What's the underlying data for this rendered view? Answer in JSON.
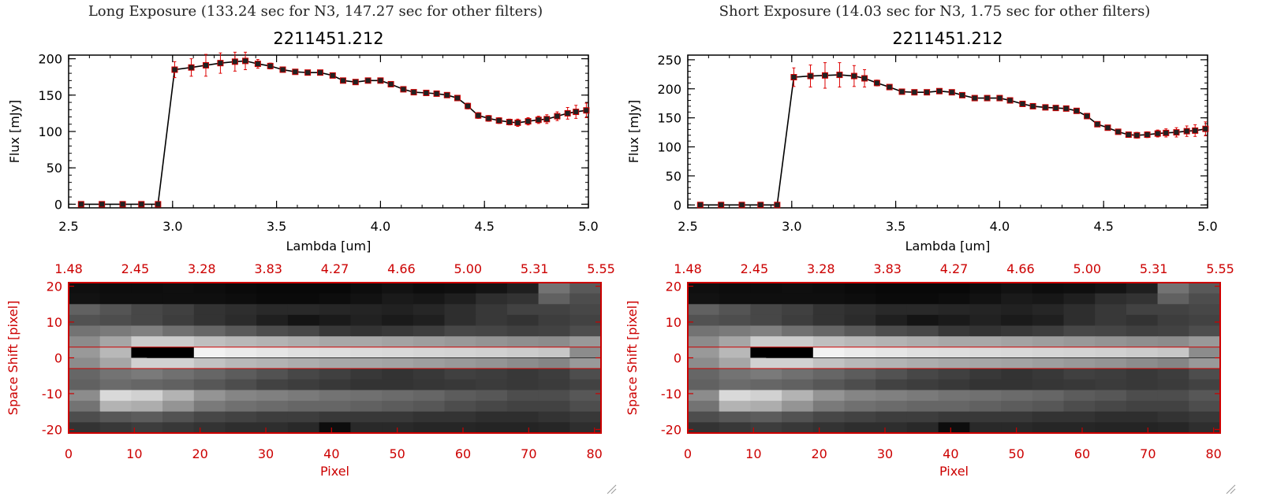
{
  "panels": [
    {
      "exposure_title": "Long Exposure (133.24 sec for N3, 147.27 sec for other filters)",
      "spectrum": {
        "title": "2211451.212",
        "xlabel": "Lambda [um]",
        "ylabel": "Flux [mJy]",
        "xticks": [
          "2.5",
          "3.0",
          "3.5",
          "4.0",
          "4.5",
          "5.0"
        ],
        "yticks": [
          "0",
          "50",
          "100",
          "150",
          "200"
        ]
      },
      "image": {
        "ylabel": "Space Shift [pixel]",
        "xlabel": "Pixel",
        "top_ticks": [
          "1.48",
          "2.45",
          "3.28",
          "3.83",
          "4.27",
          "4.66",
          "5.00",
          "5.31",
          "5.55"
        ],
        "bottom_ticks": [
          "0",
          "10",
          "20",
          "30",
          "40",
          "50",
          "60",
          "70",
          "80"
        ],
        "yticks": [
          "20",
          "10",
          "0",
          "-10",
          "-20"
        ]
      }
    },
    {
      "exposure_title": "Short Exposure (14.03 sec for N3, 1.75 sec for other filters)",
      "spectrum": {
        "title": "2211451.212",
        "xlabel": "Lambda [um]",
        "ylabel": "Flux [mJy]",
        "xticks": [
          "2.5",
          "3.0",
          "3.5",
          "4.0",
          "4.5",
          "5.0"
        ],
        "yticks": [
          "0",
          "50",
          "100",
          "150",
          "200",
          "250"
        ]
      },
      "image": {
        "ylabel": "Space Shift [pixel]",
        "xlabel": "Pixel",
        "top_ticks": [
          "1.48",
          "2.45",
          "3.28",
          "3.83",
          "4.27",
          "4.66",
          "5.00",
          "5.31",
          "5.55"
        ],
        "bottom_ticks": [
          "0",
          "10",
          "20",
          "30",
          "40",
          "50",
          "60",
          "70",
          "80"
        ],
        "yticks": [
          "20",
          "10",
          "0",
          "-10",
          "-20"
        ]
      }
    }
  ],
  "chart_data": [
    {
      "type": "scatter",
      "title": "2211451.212",
      "xlabel": "Lambda [um]",
      "ylabel": "Flux [mJy]",
      "xlim": [
        2.5,
        5.0
      ],
      "ylim": [
        -5,
        205
      ],
      "x": [
        2.56,
        2.66,
        2.76,
        2.85,
        2.93,
        3.01,
        3.09,
        3.16,
        3.23,
        3.3,
        3.35,
        3.41,
        3.47,
        3.53,
        3.59,
        3.65,
        3.71,
        3.77,
        3.82,
        3.88,
        3.94,
        4.0,
        4.05,
        4.11,
        4.16,
        4.22,
        4.27,
        4.32,
        4.37,
        4.42,
        4.47,
        4.52,
        4.57,
        4.62,
        4.66,
        4.71,
        4.76,
        4.8,
        4.85,
        4.9,
        4.94,
        4.99
      ],
      "y": [
        0,
        0,
        0,
        0,
        0,
        185,
        188,
        191,
        194,
        196,
        197,
        193,
        190,
        185,
        182,
        181,
        181,
        177,
        170,
        168,
        170,
        170,
        165,
        158,
        154,
        153,
        152,
        150,
        146,
        135,
        122,
        118,
        115,
        113,
        112,
        114,
        116,
        117,
        121,
        125,
        127,
        129
      ],
      "yerr": [
        0,
        0,
        0,
        0,
        0,
        11,
        12,
        15,
        14,
        13,
        12,
        6,
        4,
        3,
        3,
        3,
        3,
        3,
        3,
        3,
        3,
        3,
        3,
        3,
        3,
        3,
        3,
        3,
        3,
        4,
        4,
        4,
        4,
        4,
        5,
        5,
        5,
        6,
        6,
        8,
        9,
        10
      ]
    },
    {
      "type": "scatter",
      "title": "2211451.212",
      "xlabel": "Lambda [um]",
      "ylabel": "Flux [mJy]",
      "xlim": [
        2.5,
        5.0
      ],
      "ylim": [
        -5,
        258
      ],
      "x": [
        2.56,
        2.66,
        2.76,
        2.85,
        2.93,
        3.01,
        3.09,
        3.16,
        3.23,
        3.3,
        3.35,
        3.41,
        3.47,
        3.53,
        3.59,
        3.65,
        3.71,
        3.77,
        3.82,
        3.88,
        3.94,
        4.0,
        4.05,
        4.11,
        4.16,
        4.22,
        4.27,
        4.32,
        4.37,
        4.42,
        4.47,
        4.52,
        4.57,
        4.62,
        4.66,
        4.71,
        4.76,
        4.8,
        4.85,
        4.9,
        4.94,
        4.99
      ],
      "y": [
        0,
        0,
        0,
        0,
        0,
        220,
        222,
        223,
        224,
        222,
        218,
        210,
        203,
        195,
        194,
        194,
        196,
        194,
        189,
        184,
        184,
        184,
        180,
        174,
        170,
        168,
        167,
        166,
        162,
        153,
        139,
        133,
        126,
        121,
        120,
        121,
        123,
        124,
        125,
        127,
        128,
        131
      ],
      "yerr": [
        0,
        0,
        0,
        0,
        0,
        16,
        19,
        22,
        21,
        18,
        15,
        5,
        4,
        3,
        3,
        3,
        3,
        3,
        3,
        3,
        3,
        3,
        3,
        3,
        3,
        3,
        3,
        3,
        3,
        4,
        4,
        4,
        4,
        4,
        5,
        5,
        6,
        7,
        8,
        9,
        10,
        12
      ]
    },
    {
      "type": "heatmap",
      "xlabel": "Pixel",
      "ylabel": "Space Shift [pixel]",
      "xlim": [
        0,
        81
      ],
      "ylim": [
        -21,
        21
      ],
      "rows_top_to_bottom": [
        [
          0.06,
          0.05,
          0.05,
          0.06,
          0.05,
          0.04,
          0.03,
          0.03,
          0.03,
          0.05,
          0.07,
          0.05,
          0.06,
          0.08,
          0.12,
          0.45,
          0.35
        ],
        [
          0.07,
          0.06,
          0.06,
          0.06,
          0.06,
          0.05,
          0.04,
          0.04,
          0.05,
          0.07,
          0.1,
          0.09,
          0.12,
          0.18,
          0.2,
          0.38,
          0.3
        ],
        [
          0.38,
          0.33,
          0.28,
          0.25,
          0.2,
          0.18,
          0.16,
          0.16,
          0.15,
          0.14,
          0.13,
          0.15,
          0.18,
          0.22,
          0.26,
          0.26,
          0.28
        ],
        [
          0.32,
          0.3,
          0.28,
          0.24,
          0.2,
          0.17,
          0.12,
          0.08,
          0.1,
          0.13,
          0.1,
          0.12,
          0.18,
          0.22,
          0.2,
          0.24,
          0.26
        ],
        [
          0.45,
          0.48,
          0.5,
          0.44,
          0.4,
          0.35,
          0.3,
          0.28,
          0.22,
          0.2,
          0.22,
          0.24,
          0.28,
          0.27,
          0.25,
          0.26,
          0.3
        ],
        [
          0.55,
          0.65,
          0.8,
          0.8,
          0.75,
          0.72,
          0.7,
          0.68,
          0.66,
          0.66,
          0.64,
          0.62,
          0.6,
          0.58,
          0.56,
          0.55,
          0.6
        ],
        [
          0.6,
          0.72,
          0.0,
          0.0,
          0.95,
          0.92,
          0.9,
          0.88,
          0.87,
          0.86,
          0.85,
          0.84,
          0.83,
          0.82,
          0.8,
          0.78,
          0.55
        ],
        [
          0.55,
          0.65,
          0.82,
          0.82,
          0.76,
          0.72,
          0.7,
          0.68,
          0.66,
          0.65,
          0.64,
          0.62,
          0.6,
          0.58,
          0.55,
          0.52,
          0.6
        ],
        [
          0.4,
          0.45,
          0.48,
          0.44,
          0.4,
          0.36,
          0.32,
          0.28,
          0.25,
          0.22,
          0.2,
          0.22,
          0.25,
          0.24,
          0.22,
          0.24,
          0.3
        ],
        [
          0.38,
          0.42,
          0.4,
          0.38,
          0.34,
          0.3,
          0.26,
          0.24,
          0.22,
          0.2,
          0.2,
          0.21,
          0.22,
          0.23,
          0.22,
          0.23,
          0.26
        ],
        [
          0.55,
          0.85,
          0.82,
          0.7,
          0.58,
          0.52,
          0.5,
          0.48,
          0.45,
          0.44,
          0.42,
          0.4,
          0.36,
          0.34,
          0.3,
          0.3,
          0.34
        ],
        [
          0.45,
          0.7,
          0.68,
          0.58,
          0.48,
          0.44,
          0.42,
          0.4,
          0.4,
          0.38,
          0.36,
          0.34,
          0.3,
          0.28,
          0.26,
          0.26,
          0.3
        ],
        [
          0.3,
          0.34,
          0.36,
          0.32,
          0.28,
          0.26,
          0.24,
          0.24,
          0.22,
          0.22,
          0.22,
          0.2,
          0.2,
          0.18,
          0.18,
          0.2,
          0.22
        ],
        [
          0.2,
          0.22,
          0.24,
          0.22,
          0.2,
          0.18,
          0.18,
          0.16,
          0.05,
          0.16,
          0.16,
          0.15,
          0.15,
          0.14,
          0.14,
          0.15,
          0.18
        ]
      ],
      "extraction_window_rows": [
        -3,
        3
      ]
    }
  ],
  "colors": {
    "axis": "#000000",
    "error_bar": "#dd0000",
    "marker_fill": "#222222",
    "marker_edge": "#cc0000",
    "image_axis": "#cc0000",
    "image_frame": "#cc0000"
  }
}
